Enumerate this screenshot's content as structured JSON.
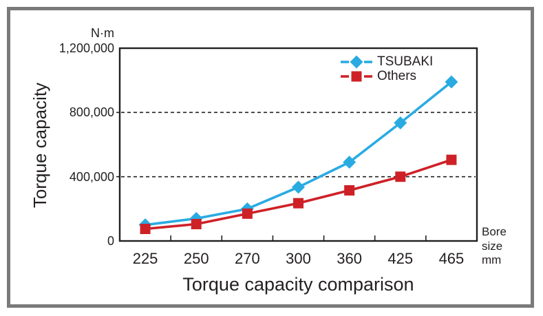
{
  "chart_data": {
    "type": "line",
    "title": "Torque capacity comparison",
    "ylabel": "Torque capacity",
    "y_unit": "N·m",
    "xlabel": "Bore size mm",
    "bore_size_label": "Bore\nsize\nmm",
    "categories": [
      "225",
      "250",
      "270",
      "300",
      "360",
      "425",
      "465"
    ],
    "series": [
      {
        "name": "TSUBAKI",
        "color": "#29abe2",
        "marker": "diamond",
        "values": [
          100000,
          140000,
          200000,
          335000,
          490000,
          735000,
          990000
        ]
      },
      {
        "name": "Others",
        "color": "#ce2127",
        "marker": "square",
        "values": [
          75000,
          105000,
          170000,
          235000,
          315000,
          400000,
          505000
        ]
      }
    ],
    "ylim": [
      0,
      1200000
    ],
    "yticks": [
      0,
      400000,
      800000,
      1200000
    ],
    "ytick_labels": [
      "0",
      "400,000",
      "800,000",
      "1,200,000"
    ],
    "gridlines": {
      "style": "dashed",
      "at": [
        400000,
        800000
      ]
    },
    "legend_position": "top-right-inside",
    "colors": {
      "axis": "#231f20",
      "frame": "#7a7a7a",
      "gridline": "#231f20"
    }
  }
}
